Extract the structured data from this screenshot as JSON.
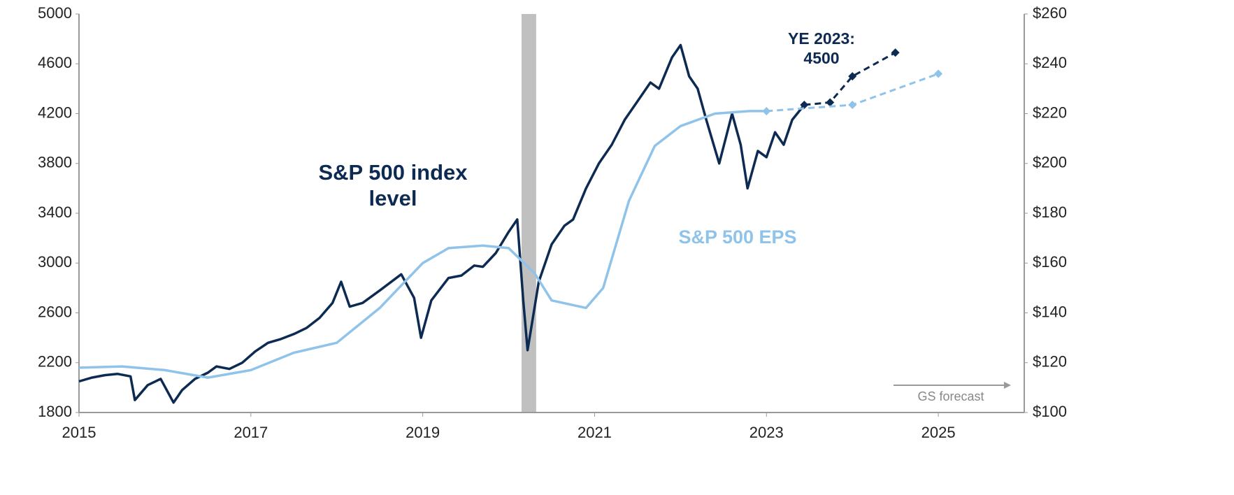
{
  "chart_data": {
    "type": "line",
    "xlim": [
      2015,
      2026
    ],
    "xticks": [
      2015,
      2017,
      2019,
      2021,
      2023,
      2025
    ],
    "ylim": [
      1800,
      5000
    ],
    "yticks": [
      1800,
      2200,
      2600,
      3000,
      3400,
      3800,
      4200,
      4600,
      5000
    ],
    "y2lim": [
      100,
      260
    ],
    "y2ticks": [
      {
        "value": 100,
        "label": "$100"
      },
      {
        "value": 120,
        "label": "$120"
      },
      {
        "value": 140,
        "label": "$140"
      },
      {
        "value": 160,
        "label": "$160"
      },
      {
        "value": 180,
        "label": "$180"
      },
      {
        "value": 200,
        "label": "$200"
      },
      {
        "value": 220,
        "label": "$220"
      },
      {
        "value": 240,
        "label": "$240"
      },
      {
        "value": 260,
        "label": "$260"
      }
    ],
    "shaded_region": [
      2020.15,
      2020.32
    ],
    "shaded_color": "#c0c0c0",
    "series": [
      {
        "name": "S&P 500 index level",
        "color": "#0d2b52",
        "style": "solid",
        "x": [
          2015.0,
          2015.15,
          2015.3,
          2015.45,
          2015.6,
          2015.65,
          2015.8,
          2015.95,
          2016.1,
          2016.2,
          2016.35,
          2016.5,
          2016.6,
          2016.75,
          2016.9,
          2017.05,
          2017.2,
          2017.35,
          2017.5,
          2017.65,
          2017.8,
          2017.95,
          2018.05,
          2018.15,
          2018.3,
          2018.5,
          2018.75,
          2018.9,
          2018.98,
          2019.1,
          2019.3,
          2019.45,
          2019.6,
          2019.7,
          2019.85,
          2020.0,
          2020.1,
          2020.17,
          2020.22,
          2020.35,
          2020.5,
          2020.65,
          2020.75,
          2020.9,
          2021.05,
          2021.2,
          2021.35,
          2021.5,
          2021.65,
          2021.75,
          2021.9,
          2022.0,
          2022.1,
          2022.2,
          2022.3,
          2022.45,
          2022.6,
          2022.7,
          2022.78,
          2022.9,
          2023.0,
          2023.1,
          2023.2,
          2023.3,
          2023.44
        ],
        "values": [
          2050,
          2080,
          2100,
          2110,
          2090,
          1900,
          2020,
          2070,
          1880,
          1980,
          2070,
          2120,
          2170,
          2150,
          2200,
          2290,
          2360,
          2390,
          2430,
          2480,
          2560,
          2680,
          2850,
          2650,
          2680,
          2780,
          2910,
          2720,
          2400,
          2700,
          2880,
          2900,
          2980,
          2970,
          3080,
          3250,
          3350,
          2700,
          2300,
          2850,
          3150,
          3300,
          3350,
          3600,
          3800,
          3950,
          4150,
          4300,
          4450,
          4400,
          4650,
          4750,
          4500,
          4400,
          4150,
          3800,
          4200,
          3950,
          3600,
          3900,
          3850,
          4050,
          3950,
          4150,
          4270
        ]
      },
      {
        "color": "#0d2b52",
        "style": "dashed",
        "marker": "diamond",
        "x": [
          2023.44,
          2023.74,
          2024.0,
          2024.5
        ],
        "values": [
          4270,
          4290,
          4500,
          4690
        ]
      },
      {
        "name": "S&P 500 EPS",
        "color": "#8fc3ea",
        "style": "solid",
        "axis": "y2",
        "x": [
          2015.0,
          2015.5,
          2016.0,
          2016.5,
          2017.0,
          2017.5,
          2018.0,
          2018.5,
          2019.0,
          2019.3,
          2019.7,
          2020.0,
          2020.3,
          2020.5,
          2020.9,
          2021.1,
          2021.4,
          2021.7,
          2022.0,
          2022.4,
          2022.8,
          2023.0
        ],
        "values": [
          118,
          118.5,
          117,
          114,
          117,
          124,
          128,
          142,
          160,
          166,
          167,
          166,
          156,
          145,
          142,
          150,
          185,
          207,
          215,
          220,
          221,
          221
        ]
      },
      {
        "color": "#8fc3ea",
        "style": "dashed",
        "marker": "diamond",
        "axis": "y2",
        "x": [
          2023.0,
          2024.0,
          2025.0
        ],
        "values": [
          221,
          223.5,
          236
        ]
      }
    ],
    "annotations": [
      "YE 2023: 4500",
      "GS forecast"
    ]
  }
}
